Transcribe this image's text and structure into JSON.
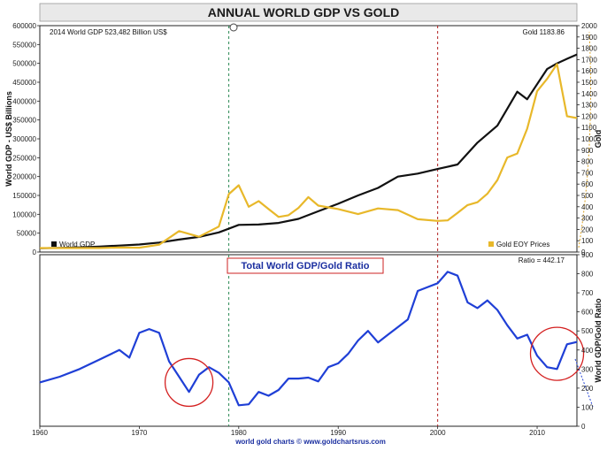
{
  "chart_data": [
    {
      "type": "line",
      "title": "ANNUAL WORLD GDP VS GOLD",
      "ylabel": "World GDP - US$ Billions",
      "y2label": "Gold",
      "ylim": [
        0,
        600000
      ],
      "y2lim": [
        0,
        2000
      ],
      "xlim": [
        1960,
        2014
      ],
      "yticks": [
        "0",
        "50000",
        "100000",
        "150000",
        "200000",
        "250000",
        "300000",
        "350000",
        "400000",
        "450000",
        "500000",
        "550000",
        "600000"
      ],
      "y2ticks": [
        "0",
        "100",
        "200",
        "300",
        "400",
        "500",
        "600",
        "700",
        "800",
        "900",
        "1000",
        "1100",
        "1200",
        "1300",
        "1400",
        "1500",
        "1600",
        "1700",
        "1800",
        "1900",
        "2000"
      ],
      "annotation_left": "2014  World GDP 523,482 Billion US$",
      "annotation_right": "Gold 1183.86",
      "legend": "bottom",
      "series": [
        {
          "name": "World GDP",
          "color": "#111111",
          "axis": "left",
          "x": [
            1960,
            1962,
            1964,
            1966,
            1968,
            1970,
            1972,
            1974,
            1976,
            1978,
            1980,
            1982,
            1984,
            1986,
            1988,
            1990,
            1992,
            1994,
            1996,
            1998,
            2000,
            2002,
            2004,
            2006,
            2008,
            2009,
            2011,
            2012,
            2013,
            2014
          ],
          "values": [
            10000,
            11000,
            12500,
            14500,
            17000,
            20000,
            25000,
            33000,
            40000,
            52000,
            72000,
            73000,
            77000,
            88000,
            108000,
            128000,
            150000,
            170000,
            200000,
            208000,
            220000,
            232000,
            290000,
            335000,
            425000,
            405000,
            485000,
            500000,
            512000,
            523482
          ]
        },
        {
          "name": "Gold EOY Prices",
          "color": "#e8b82a",
          "axis": "right",
          "x": [
            1960,
            1966,
            1968,
            1970,
            1972,
            1974,
            1976,
            1978,
            1979,
            1980,
            1981,
            1982,
            1983,
            1984,
            1985,
            1986,
            1987,
            1988,
            1990,
            1992,
            1994,
            1996,
            1998,
            2000,
            2001,
            2002,
            2003,
            2004,
            2005,
            2006,
            2007,
            2008,
            2009,
            2010,
            2011,
            2012,
            2013,
            2014
          ],
          "values": [
            35,
            35,
            40,
            38,
            65,
            185,
            135,
            225,
            512,
            590,
            400,
            450,
            380,
            310,
            325,
            390,
            485,
            410,
            380,
            335,
            385,
            370,
            290,
            275,
            280,
            345,
            415,
            440,
            515,
            635,
            835,
            870,
            1090,
            1420,
            1530,
            1660,
            1200,
            1183.86
          ]
        }
      ]
    },
    {
      "type": "line",
      "title": "Total World GDP/Gold Ratio",
      "ylabel": "World GDP/Gold Ratio",
      "ylim": [
        0,
        900
      ],
      "xlim": [
        1960,
        2014
      ],
      "xticks": [
        "1960",
        "1970",
        "1980",
        "1990",
        "2000",
        "2010"
      ],
      "yticks": [
        "0",
        "100",
        "200",
        "300",
        "400",
        "500",
        "600",
        "700",
        "800",
        "900"
      ],
      "annotation_right": "Ratio = 442.17",
      "series": [
        {
          "name": "Total World GDP/Gold Ratio",
          "color": "#1f3fd6",
          "x": [
            1960,
            1962,
            1964,
            1966,
            1968,
            1969,
            1970,
            1971,
            1972,
            1973,
            1974,
            1975,
            1976,
            1977,
            1978,
            1979,
            1980,
            1981,
            1982,
            1983,
            1984,
            1985,
            1986,
            1987,
            1988,
            1989,
            1990,
            1991,
            1992,
            1993,
            1994,
            1995,
            1996,
            1997,
            1998,
            1999,
            2000,
            2001,
            2002,
            2003,
            2004,
            2005,
            2006,
            2007,
            2008,
            2009,
            2010,
            2011,
            2012,
            2013,
            2014
          ],
          "values": [
            230,
            260,
            300,
            350,
            400,
            360,
            490,
            510,
            490,
            340,
            260,
            180,
            270,
            310,
            280,
            230,
            110,
            115,
            180,
            160,
            190,
            250,
            250,
            255,
            235,
            310,
            330,
            380,
            450,
            500,
            440,
            480,
            520,
            560,
            710,
            730,
            750,
            810,
            790,
            650,
            620,
            660,
            610,
            530,
            460,
            480,
            370,
            310,
            300,
            430,
            442.17
          ]
        }
      ],
      "vlines": [
        1979,
        2000
      ]
    }
  ],
  "footer": "world gold charts © www.goldchartsrus.com"
}
